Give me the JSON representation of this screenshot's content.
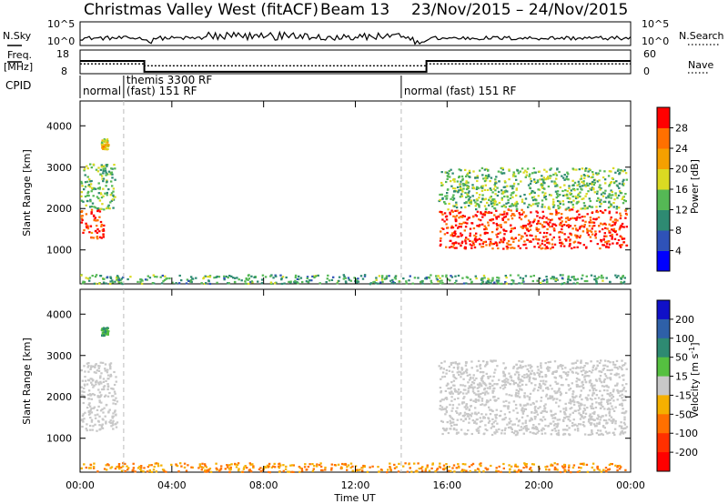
{
  "header": {
    "station": "Christmas Valley West (fitACF)",
    "beam": "Beam 13",
    "date_range": "23/Nov/2015 – 24/Nov/2015"
  },
  "nsky_panel": {
    "left_label": "N.Sky",
    "right_label": "N.Search",
    "left_ticks": [
      "10^5",
      "10^0"
    ],
    "right_ticks": [
      "10^5",
      "10^0"
    ]
  },
  "freq_panel": {
    "left_label_1": "Freq.",
    "left_label_2": "[MHz]",
    "right_label": "Nave",
    "left_ticks": [
      "18",
      "8"
    ],
    "right_ticks": [
      "60",
      "0"
    ],
    "freq_steps": [
      {
        "from": 0,
        "to": 2.8,
        "value": 13.4
      },
      {
        "from": 2.8,
        "to": 15.1,
        "value": 8.8
      },
      {
        "from": 15.1,
        "to": 24,
        "value": 13.4
      }
    ],
    "nave_steps": [
      {
        "from": 0,
        "to": 2.8,
        "value": 25
      },
      {
        "from": 2.8,
        "to": 15.1,
        "value": 20
      },
      {
        "from": 15.1,
        "to": 24,
        "value": 25
      }
    ]
  },
  "cpid_panel": {
    "label": "CPID",
    "segments": [
      {
        "t": 0.0,
        "lines": [
          "normal"
        ]
      },
      {
        "t": 1.9,
        "lines": [
          "themis 3300 RF",
          "(fast) 151 RF"
        ]
      },
      {
        "t": 14.0,
        "lines": [
          "normal (fast) 151 RF"
        ]
      }
    ]
  },
  "power_colorbar": {
    "label": "Power [dB]",
    "ticks": [
      "4",
      "8",
      "12",
      "16",
      "20",
      "24",
      "28"
    ],
    "colors": [
      "#0000ff",
      "#2f52b8",
      "#2e8a72",
      "#55b855",
      "#dada22",
      "#f5a000",
      "#ff7000",
      "#ff0000"
    ]
  },
  "velocity_colorbar": {
    "label": "Velocity [m s^-1]",
    "ticks": [
      "200",
      "100",
      "50",
      "15",
      "-15",
      "-50",
      "-100",
      "-200"
    ],
    "colors": [
      "#1010c8",
      "#2e60a8",
      "#2e8a72",
      "#55c040",
      "#c8c8c8",
      "#f5b000",
      "#ff7000",
      "#ff3000",
      "#ff0000"
    ]
  },
  "chart_data": {
    "type": "heatmap",
    "xlabel": "Time UT",
    "ylabel": "Slant Range [km]",
    "x_ticks": [
      "00:00",
      "04:00",
      "08:00",
      "12:00",
      "16:00",
      "20:00",
      "00:00"
    ],
    "y_ticks": [
      "1000",
      "2000",
      "3000",
      "4000"
    ],
    "xlim_hours": [
      0,
      24
    ],
    "ylim_km": [
      180,
      4600
    ],
    "dashed_time_markers_hours": [
      1.9,
      14.0
    ],
    "panels": [
      {
        "name": "Power",
        "unit": "dB",
        "scatter_regions": [
          {
            "t": [
              0.0,
              1.0
            ],
            "range_km": [
              1300,
              2000
            ],
            "value": 28
          },
          {
            "t": [
              0.0,
              1.5
            ],
            "range_km": [
              2000,
              3100
            ],
            "value": 14
          },
          {
            "t": [
              0.9,
              1.2
            ],
            "range_km": [
              3450,
              3700
            ],
            "value": 20
          },
          {
            "t": [
              15.6,
              23.8
            ],
            "range_km": [
              1050,
              2000
            ],
            "value": 29
          },
          {
            "t": [
              15.6,
              23.8
            ],
            "range_km": [
              2000,
              3000
            ],
            "value": 14
          },
          {
            "t": [
              0.0,
              23.8
            ],
            "range_km": [
              200,
              420
            ],
            "value": 12
          }
        ]
      },
      {
        "name": "Velocity",
        "unit": "m s^-1",
        "scatter_regions": [
          {
            "t": [
              0.0,
              1.6
            ],
            "range_km": [
              1200,
              2850
            ],
            "value": 0
          },
          {
            "t": [
              0.9,
              1.2
            ],
            "range_km": [
              3500,
              3700
            ],
            "value": 50
          },
          {
            "t": [
              15.6,
              23.8
            ],
            "range_km": [
              1100,
              2900
            ],
            "value": 0
          },
          {
            "t": [
              0.0,
              23.8
            ],
            "range_km": [
              200,
              420
            ],
            "value": -50
          }
        ]
      }
    ]
  }
}
